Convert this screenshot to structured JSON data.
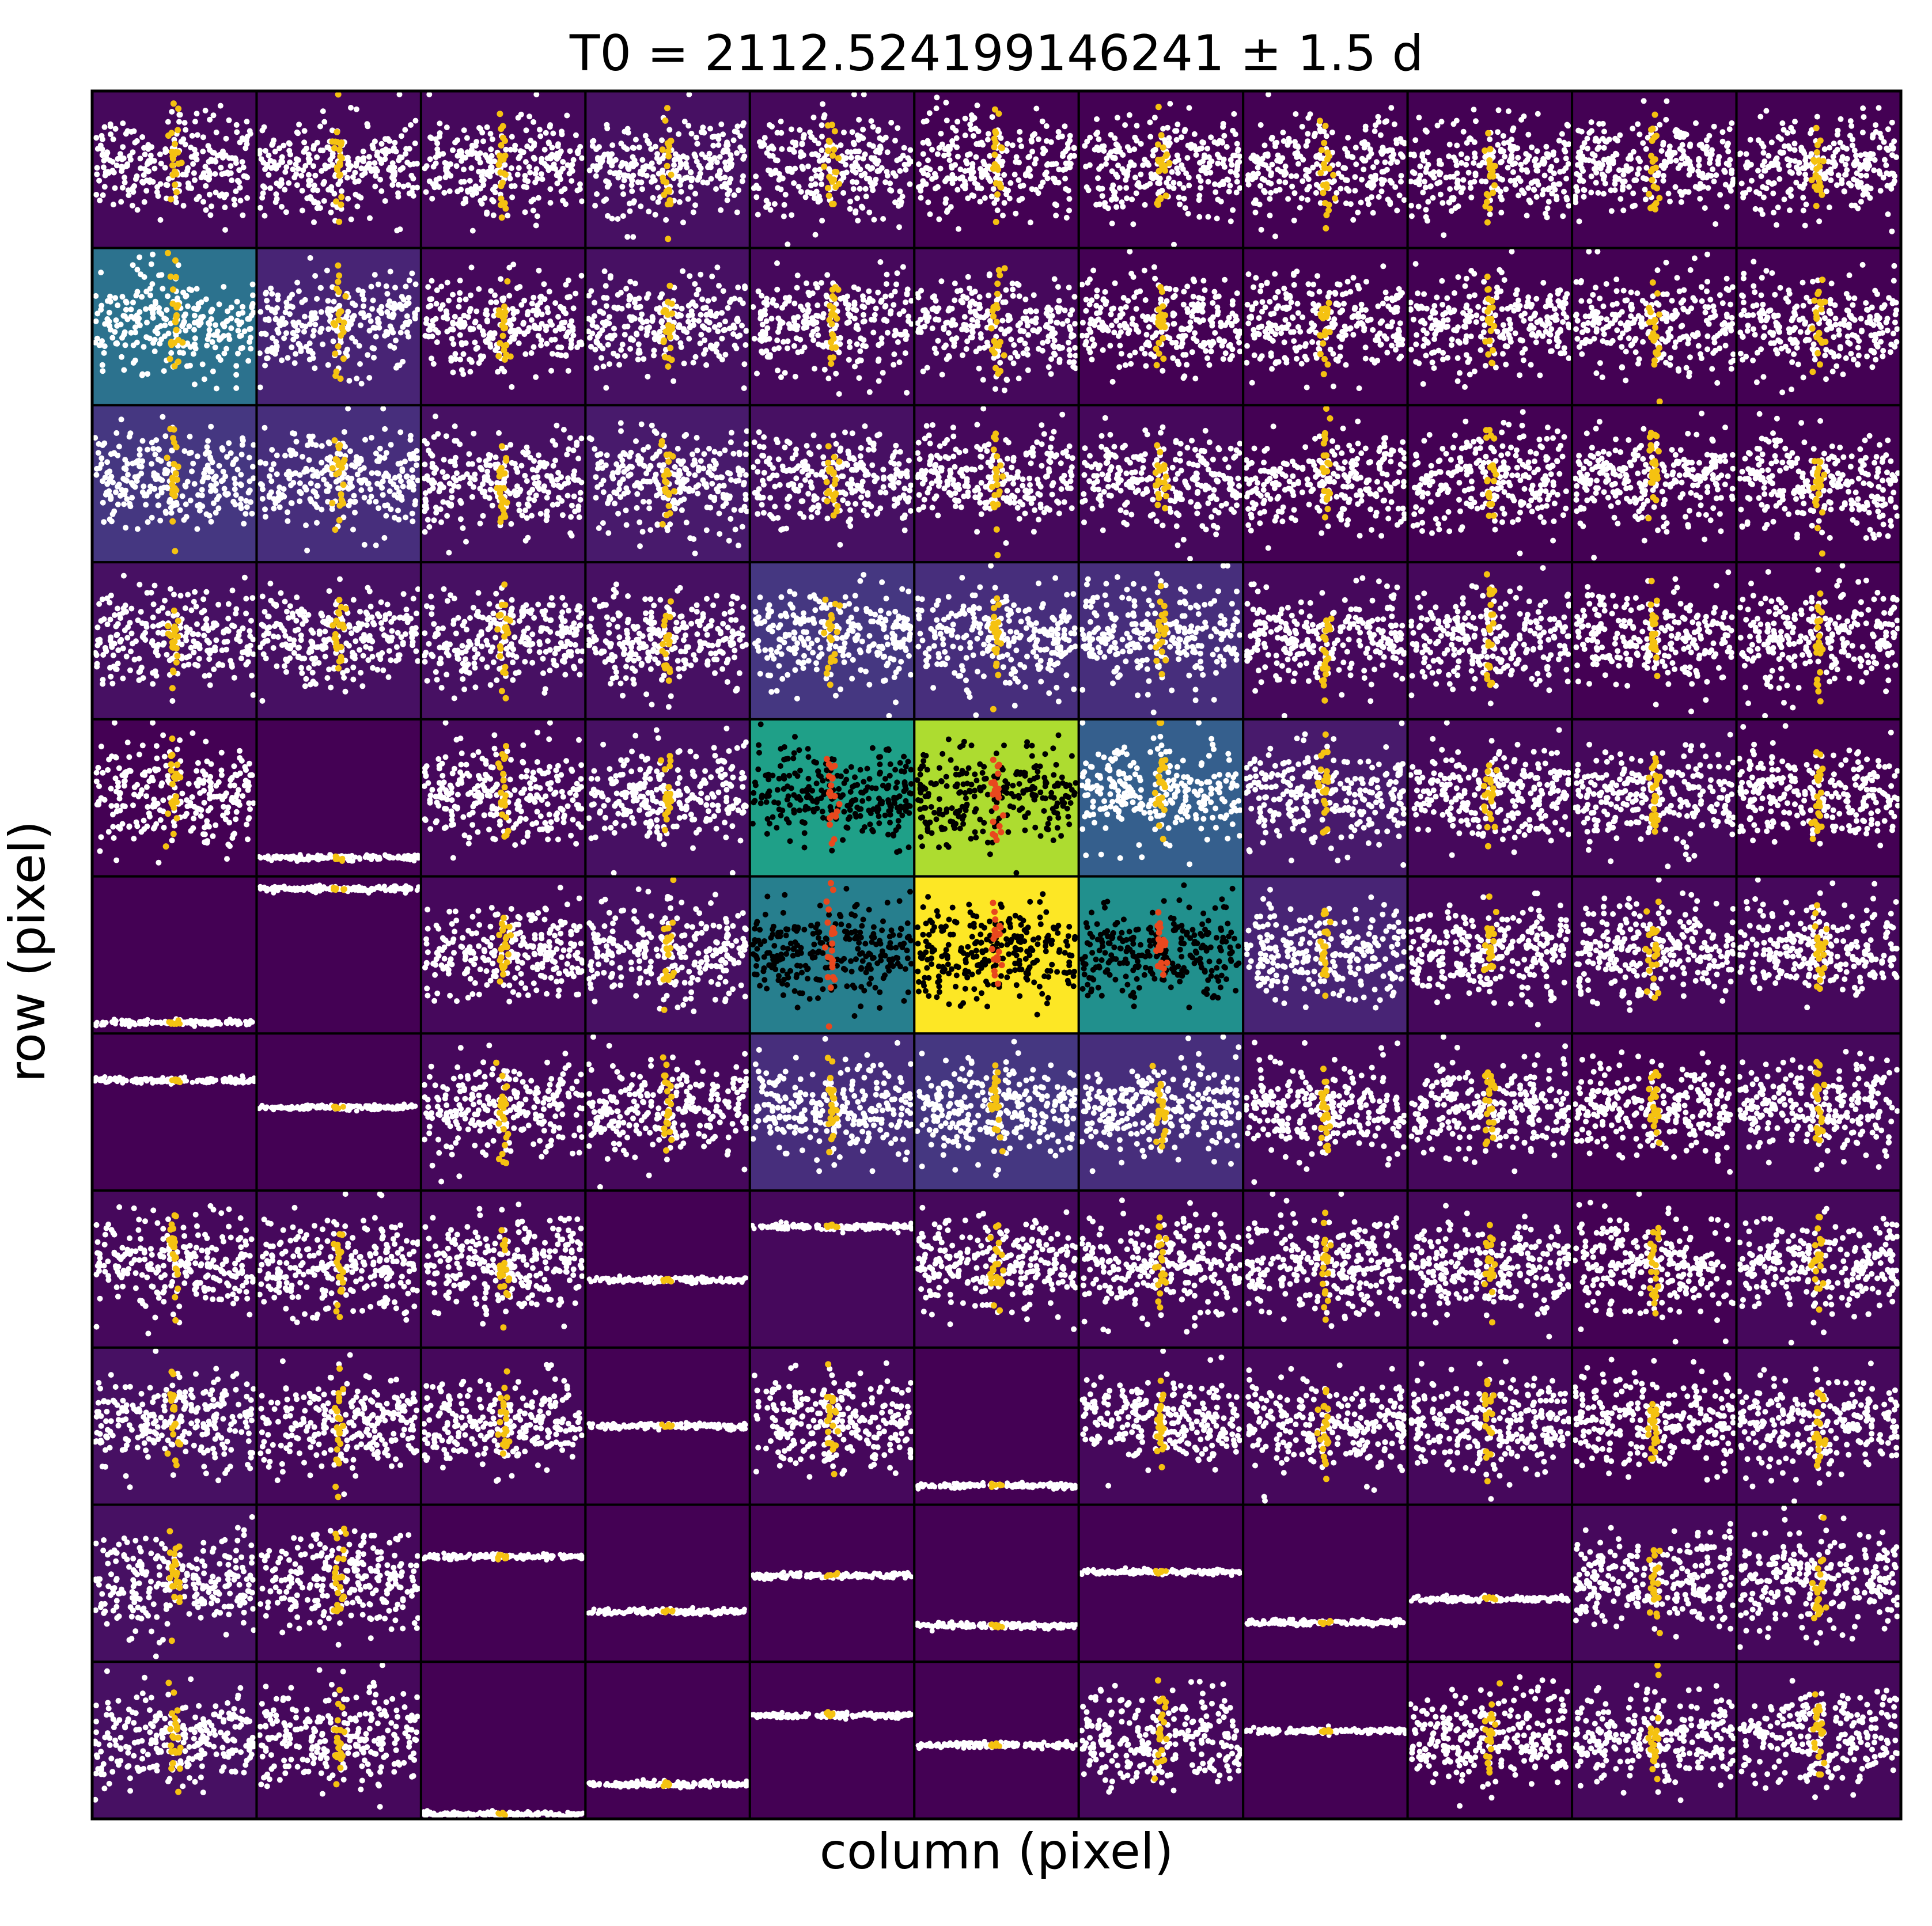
{
  "chart_data": {
    "type": "pixel-grid-scatter",
    "title": "T0 = 2112.524199146241 ± 1.5 d",
    "xlabel": "column (pixel)",
    "ylabel": "row (pixel)",
    "grid_rows": 11,
    "grid_cols": 11,
    "colormap": "viridis",
    "grid": false,
    "legend": "none",
    "colors": {
      "background_levels": [
        "#440154",
        "#46085c",
        "#471063",
        "#481a6c",
        "#482475",
        "#472e7c",
        "#453781",
        "#404688",
        "#3b528b",
        "#355f8d",
        "#2c728e",
        "#277f8e",
        "#21908d",
        "#1fa088",
        "#27ad81",
        "#3dbc74",
        "#5ec962",
        "#84d44b",
        "#addc30",
        "#d2e21b",
        "#fde725"
      ],
      "out_of_transit_points_normal": "#ffffff",
      "in_transit_points_normal": "#f5c211",
      "out_of_transit_points_aperture": "#000000",
      "in_transit_points_aperture": "#e8481e",
      "frame": "#000000"
    },
    "pixel_brightness_level": [
      [
        1,
        1,
        1,
        2,
        1,
        0,
        0,
        0,
        0,
        0,
        0
      ],
      [
        10,
        4,
        1,
        2,
        1,
        1,
        0,
        0,
        0,
        0,
        0
      ],
      [
        6,
        5,
        2,
        3,
        2,
        1,
        1,
        0,
        0,
        0,
        0
      ],
      [
        2,
        2,
        2,
        2,
        6,
        5,
        5,
        1,
        1,
        0,
        0
      ],
      [
        0,
        0,
        1,
        2,
        13,
        18,
        9,
        3,
        1,
        1,
        0
      ],
      [
        0,
        0,
        1,
        2,
        11,
        20,
        12,
        4,
        1,
        1,
        1
      ],
      [
        0,
        0,
        1,
        1,
        5,
        6,
        5,
        1,
        1,
        0,
        1
      ],
      [
        1,
        1,
        1,
        0,
        1,
        1,
        1,
        1,
        1,
        0,
        1
      ],
      [
        2,
        1,
        1,
        0,
        1,
        0,
        1,
        1,
        1,
        0,
        1
      ],
      [
        2,
        1,
        0,
        0,
        0,
        0,
        0,
        0,
        0,
        1,
        1
      ],
      [
        2,
        1,
        0,
        0,
        0,
        0,
        1,
        0,
        0,
        1,
        1
      ]
    ],
    "in_aperture": [
      [
        0,
        0,
        0,
        0,
        0,
        0,
        0,
        0,
        0,
        0,
        0
      ],
      [
        0,
        0,
        0,
        0,
        0,
        0,
        0,
        0,
        0,
        0,
        0
      ],
      [
        0,
        0,
        0,
        0,
        0,
        0,
        0,
        0,
        0,
        0,
        0
      ],
      [
        0,
        0,
        0,
        0,
        0,
        0,
        0,
        0,
        0,
        0,
        0
      ],
      [
        0,
        0,
        0,
        0,
        1,
        1,
        0,
        0,
        0,
        0,
        0
      ],
      [
        0,
        0,
        0,
        0,
        1,
        1,
        1,
        0,
        0,
        0,
        0
      ],
      [
        0,
        0,
        0,
        0,
        0,
        0,
        0,
        0,
        0,
        0,
        0
      ],
      [
        0,
        0,
        0,
        0,
        0,
        0,
        0,
        0,
        0,
        0,
        0
      ],
      [
        0,
        0,
        0,
        0,
        0,
        0,
        0,
        0,
        0,
        0,
        0
      ],
      [
        0,
        0,
        0,
        0,
        0,
        0,
        0,
        0,
        0,
        0,
        0
      ],
      [
        0,
        0,
        0,
        0,
        0,
        0,
        0,
        0,
        0,
        0,
        0
      ]
    ],
    "cell_pattern": [
      [
        "noisy",
        "noisy",
        "noisy",
        "noisy",
        "noisy",
        "noisy",
        "noisy",
        "noisy",
        "noisy",
        "noisy",
        "noisy"
      ],
      [
        "noisy",
        "noisy",
        "noisy",
        "noisy",
        "noisy",
        "noisy",
        "noisy",
        "noisy",
        "noisy",
        "noisy",
        "noisy"
      ],
      [
        "noisy",
        "noisy",
        "noisy",
        "noisy",
        "noisy",
        "noisy",
        "noisy",
        "noisy",
        "noisy",
        "noisy",
        "noisy"
      ],
      [
        "noisy",
        "noisy",
        "noisy",
        "noisy",
        "noisy",
        "noisy",
        "noisy",
        "noisy",
        "noisy",
        "noisy",
        "noisy"
      ],
      [
        "noisy",
        "flat",
        "noisy",
        "noisy",
        "noisy",
        "noisy",
        "noisy",
        "noisy",
        "noisy",
        "noisy",
        "noisy"
      ],
      [
        "flat",
        "flat",
        "noisy",
        "noisy",
        "noisy",
        "noisy",
        "noisy",
        "noisy",
        "noisy",
        "noisy",
        "noisy"
      ],
      [
        "flat",
        "flat",
        "noisy",
        "noisy",
        "noisy",
        "noisy",
        "noisy",
        "noisy",
        "noisy",
        "noisy",
        "noisy"
      ],
      [
        "noisy",
        "noisy",
        "noisy",
        "flat",
        "flat",
        "noisy",
        "noisy",
        "noisy",
        "noisy",
        "noisy",
        "noisy"
      ],
      [
        "noisy",
        "noisy",
        "noisy",
        "flat",
        "noisy",
        "flat",
        "noisy",
        "noisy",
        "noisy",
        "noisy",
        "noisy"
      ],
      [
        "noisy",
        "noisy",
        "flat",
        "flat",
        "flat",
        "flat",
        "flat",
        "flat",
        "flat",
        "noisy",
        "noisy"
      ],
      [
        "noisy",
        "noisy",
        "flat",
        "flat",
        "flat",
        "flat",
        "noisy",
        "flat",
        "noisy",
        "noisy",
        "noisy"
      ]
    ],
    "flat_line_level": [
      [
        0,
        0,
        0,
        0,
        0,
        0,
        0,
        0,
        0,
        0,
        0
      ],
      [
        0,
        0,
        0,
        0,
        0,
        0,
        0,
        0,
        0,
        0,
        0
      ],
      [
        0,
        0,
        0,
        0,
        0,
        0,
        0,
        0,
        0,
        0,
        0
      ],
      [
        0,
        0,
        0,
        0,
        0,
        0,
        0,
        0,
        0,
        0,
        0
      ],
      [
        0,
        0.88,
        0,
        0,
        0,
        0,
        0,
        0,
        0,
        0,
        0
      ],
      [
        0.93,
        0.08,
        0,
        0,
        0,
        0,
        0,
        0,
        0,
        0,
        0
      ],
      [
        0.3,
        0.47,
        0,
        0,
        0,
        0,
        0,
        0,
        0,
        0,
        0
      ],
      [
        0,
        0,
        0,
        0.57,
        0.23,
        0,
        0,
        0,
        0,
        0,
        0
      ],
      [
        0,
        0,
        0,
        0.5,
        0,
        0.88,
        0,
        0,
        0,
        0,
        0
      ],
      [
        0,
        0,
        0.33,
        0.68,
        0.45,
        0.77,
        0.43,
        0.75,
        0.6,
        0,
        0
      ],
      [
        0,
        0,
        0.97,
        0.78,
        0.34,
        0.53,
        0,
        0.44,
        0,
        0,
        0
      ]
    ],
    "in_transit_location": 0.5
  }
}
